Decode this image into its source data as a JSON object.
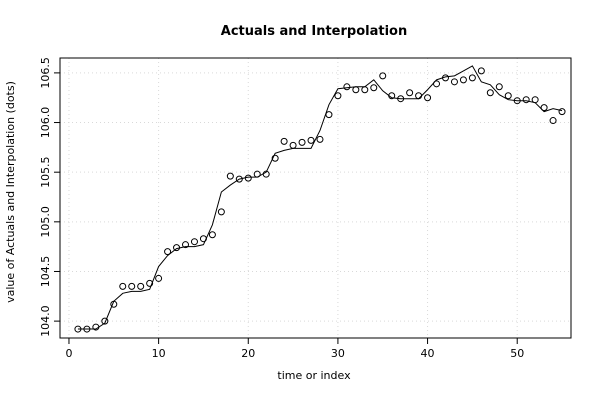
{
  "chart_data": {
    "type": "scatter",
    "title": "Actuals and Interpolation",
    "xlabel": "time or index",
    "ylabel": "value of Actuals and Interpolation (dots)",
    "xlim": [
      -1,
      56
    ],
    "ylim": [
      103.83,
      106.65
    ],
    "x_ticks": [
      0,
      10,
      20,
      30,
      40,
      50
    ],
    "y_ticks": [
      104.0,
      104.5,
      105.0,
      105.5,
      106.0,
      106.5
    ],
    "y_tick_labels": [
      "104.0",
      "104.5",
      "105.0",
      "105.5",
      "106.0",
      "106.5"
    ],
    "grid": true,
    "series": [
      {
        "role": "actuals",
        "marker": "open-circle",
        "x": [
          1,
          2,
          3,
          4,
          5,
          6,
          7,
          8,
          9,
          10,
          11,
          12,
          13,
          14,
          15,
          16,
          17,
          18,
          19,
          20,
          21,
          22,
          23,
          24,
          25,
          26,
          27,
          28,
          29,
          30,
          31,
          32,
          33,
          34,
          35,
          36,
          37,
          38,
          39,
          40,
          41,
          42,
          43,
          44,
          45,
          46,
          47,
          48,
          49,
          50,
          51,
          52,
          53,
          54,
          55
        ],
        "values": [
          103.92,
          103.92,
          103.94,
          104.0,
          104.17,
          104.35,
          104.35,
          104.35,
          104.38,
          104.43,
          104.7,
          104.74,
          104.77,
          104.8,
          104.83,
          104.87,
          105.1,
          105.46,
          105.43,
          105.44,
          105.48,
          105.48,
          105.64,
          105.81,
          105.77,
          105.8,
          105.82,
          105.83,
          106.08,
          106.27,
          106.36,
          106.33,
          106.33,
          106.35,
          106.47,
          106.27,
          106.24,
          106.3,
          106.27,
          106.25,
          106.39,
          106.45,
          106.41,
          106.43,
          106.45,
          106.52,
          106.3,
          106.36,
          106.27,
          106.22,
          106.23,
          106.23,
          106.15,
          106.02,
          106.11
        ]
      },
      {
        "role": "interpolation",
        "marker": "line",
        "x": [
          1,
          2,
          3,
          4,
          5,
          6,
          7,
          8,
          9,
          10,
          11,
          12,
          13,
          14,
          15,
          16,
          17,
          18,
          19,
          20,
          21,
          22,
          23,
          24,
          25,
          26,
          27,
          28,
          29,
          30,
          31,
          32,
          33,
          34,
          35,
          36,
          37,
          38,
          39,
          40,
          41,
          42,
          43,
          44,
          45,
          46,
          47,
          48,
          49,
          50,
          51,
          52,
          53,
          54,
          55
        ],
        "values": [
          103.92,
          103.92,
          103.92,
          103.98,
          104.2,
          104.28,
          104.3,
          104.3,
          104.32,
          104.55,
          104.66,
          104.73,
          104.75,
          104.75,
          104.77,
          104.97,
          105.3,
          105.37,
          105.43,
          105.45,
          105.45,
          105.5,
          105.69,
          105.72,
          105.74,
          105.74,
          105.74,
          105.92,
          106.18,
          106.34,
          106.35,
          106.36,
          106.36,
          106.43,
          106.32,
          106.25,
          106.24,
          106.24,
          106.24,
          106.33,
          106.43,
          106.46,
          106.47,
          106.52,
          106.57,
          106.41,
          106.38,
          106.28,
          106.23,
          106.22,
          106.22,
          106.2,
          106.11,
          106.14,
          106.12
        ]
      }
    ]
  }
}
